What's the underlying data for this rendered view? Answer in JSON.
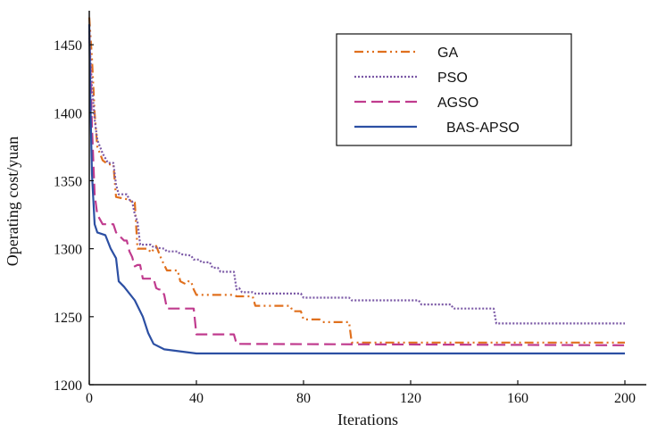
{
  "chart_data": {
    "type": "line",
    "title": "",
    "xlabel": "Iterations",
    "ylabel": "Operating cost/yuan",
    "xlim": [
      0,
      208
    ],
    "ylim": [
      1200,
      1475
    ],
    "xticks": [
      0,
      40,
      80,
      120,
      160,
      200
    ],
    "yticks": [
      1200,
      1250,
      1300,
      1350,
      1400,
      1450
    ],
    "grid": false,
    "legend_position": "top-right",
    "series": [
      {
        "name": "GA",
        "color": "#e0701e",
        "dash": "dashdotdot",
        "points": [
          [
            0,
            1470
          ],
          [
            1,
            1440
          ],
          [
            2,
            1400
          ],
          [
            3,
            1375
          ],
          [
            5,
            1365
          ],
          [
            7,
            1362
          ],
          [
            9,
            1362
          ],
          [
            10,
            1338
          ],
          [
            15,
            1336
          ],
          [
            16,
            1334
          ],
          [
            17,
            1334
          ],
          [
            18,
            1300
          ],
          [
            22,
            1300
          ],
          [
            23,
            1297
          ],
          [
            25,
            1302
          ],
          [
            26,
            1297
          ],
          [
            27,
            1292
          ],
          [
            29,
            1284
          ],
          [
            33,
            1284
          ],
          [
            34,
            1276
          ],
          [
            36,
            1274
          ],
          [
            37,
            1276
          ],
          [
            38,
            1276
          ],
          [
            39,
            1270
          ],
          [
            40,
            1266
          ],
          [
            54,
            1266
          ],
          [
            55,
            1265
          ],
          [
            61,
            1265
          ],
          [
            62,
            1258
          ],
          [
            75,
            1258
          ],
          [
            76,
            1254
          ],
          [
            79,
            1254
          ],
          [
            80,
            1248
          ],
          [
            86,
            1248
          ],
          [
            87,
            1246
          ],
          [
            97,
            1246
          ],
          [
            98,
            1231
          ],
          [
            100,
            1231
          ],
          [
            200,
            1231
          ]
        ]
      },
      {
        "name": "PSO",
        "color": "#7b59a6",
        "dash": "dotted",
        "points": [
          [
            0,
            1455
          ],
          [
            1,
            1420
          ],
          [
            2,
            1395
          ],
          [
            3,
            1380
          ],
          [
            5,
            1370
          ],
          [
            7,
            1363
          ],
          [
            9,
            1363
          ],
          [
            10,
            1347
          ],
          [
            11,
            1340
          ],
          [
            14,
            1340
          ],
          [
            15,
            1336
          ],
          [
            16,
            1335
          ],
          [
            17,
            1325
          ],
          [
            18,
            1320
          ],
          [
            19,
            1303
          ],
          [
            23,
            1303
          ],
          [
            24,
            1301
          ],
          [
            28,
            1300
          ],
          [
            29,
            1298
          ],
          [
            33,
            1298
          ],
          [
            34,
            1296
          ],
          [
            38,
            1295
          ],
          [
            39,
            1292
          ],
          [
            41,
            1292
          ],
          [
            42,
            1290
          ],
          [
            45,
            1290
          ],
          [
            46,
            1286
          ],
          [
            48,
            1286
          ],
          [
            49,
            1283
          ],
          [
            54,
            1283
          ],
          [
            55,
            1270
          ],
          [
            56,
            1271
          ],
          [
            57,
            1268
          ],
          [
            61,
            1268
          ],
          [
            62,
            1267
          ],
          [
            79,
            1267
          ],
          [
            80,
            1264
          ],
          [
            97,
            1264
          ],
          [
            98,
            1262
          ],
          [
            123,
            1262
          ],
          [
            124,
            1259
          ],
          [
            135,
            1259
          ],
          [
            136,
            1256
          ],
          [
            151,
            1256
          ],
          [
            152,
            1245
          ],
          [
            200,
            1245
          ]
        ]
      },
      {
        "name": "AGSO",
        "color": "#c03b8e",
        "dash": "dashed",
        "points": [
          [
            0,
            1460
          ],
          [
            1,
            1390
          ],
          [
            2,
            1340
          ],
          [
            3,
            1325
          ],
          [
            5,
            1318
          ],
          [
            9,
            1318
          ],
          [
            10,
            1312
          ],
          [
            13,
            1306
          ],
          [
            14,
            1306
          ],
          [
            15,
            1298
          ],
          [
            16,
            1294
          ],
          [
            17,
            1287
          ],
          [
            18,
            1288
          ],
          [
            19,
            1288
          ],
          [
            20,
            1278
          ],
          [
            24,
            1278
          ],
          [
            25,
            1271
          ],
          [
            26,
            1270
          ],
          [
            27,
            1270
          ],
          [
            28,
            1266
          ],
          [
            29,
            1256
          ],
          [
            39,
            1256
          ],
          [
            40,
            1237
          ],
          [
            54,
            1237
          ],
          [
            55,
            1230
          ],
          [
            56,
            1230
          ],
          [
            200,
            1229
          ]
        ]
      },
      {
        "name": "BAS-APSO",
        "color": "#2c4fa3",
        "dash": "solid",
        "points": [
          [
            0,
            1465
          ],
          [
            0.5,
            1400
          ],
          [
            1,
            1355
          ],
          [
            2,
            1318
          ],
          [
            3,
            1312
          ],
          [
            6,
            1310
          ],
          [
            8,
            1300
          ],
          [
            10,
            1293
          ],
          [
            11,
            1276
          ],
          [
            13,
            1272
          ],
          [
            17,
            1262
          ],
          [
            20,
            1250
          ],
          [
            22,
            1238
          ],
          [
            24,
            1230
          ],
          [
            28,
            1226
          ],
          [
            40,
            1223
          ],
          [
            200,
            1223
          ]
        ]
      }
    ]
  }
}
